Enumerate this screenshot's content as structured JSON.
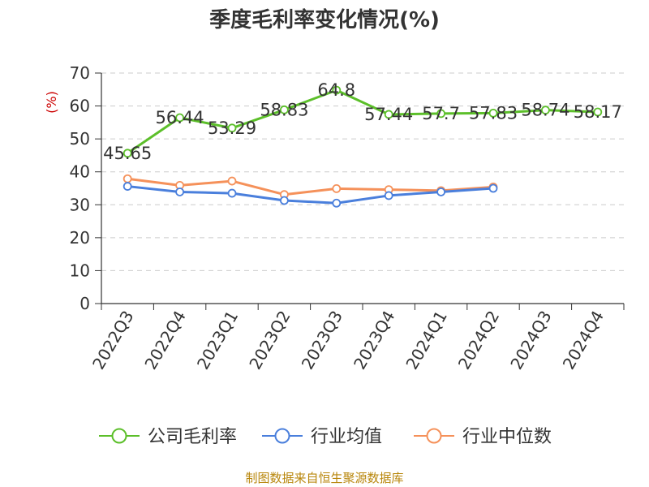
{
  "chart_data": {
    "type": "line",
    "title": "季度毛利率变化情况(%)",
    "ylabel": "(%)",
    "categories": [
      "2022Q3",
      "2022Q4",
      "2023Q1",
      "2023Q2",
      "2023Q3",
      "2023Q4",
      "2024Q1",
      "2024Q2",
      "2024Q3",
      "2024Q4"
    ],
    "ylim": [
      0,
      70
    ],
    "yticks": [
      0,
      10,
      20,
      30,
      40,
      50,
      60,
      70
    ],
    "grid": true,
    "legend_position": "bottom",
    "series": [
      {
        "name": "公司毛利率",
        "color": "#5cbf2a",
        "values": [
          45.65,
          56.44,
          53.29,
          58.83,
          64.8,
          57.44,
          57.7,
          57.83,
          58.74,
          58.17
        ],
        "labels": [
          "45.65",
          "56.44",
          "53.29",
          "58.83",
          "64.8",
          "57.44",
          "57.7",
          "57.83",
          "58.74",
          "58.17"
        ],
        "show_labels": true
      },
      {
        "name": "行业均值",
        "color": "#4a7fdc",
        "values": [
          35.6,
          33.9,
          33.5,
          31.3,
          30.5,
          32.8,
          33.9,
          35.0,
          null,
          null
        ],
        "show_labels": false
      },
      {
        "name": "行业中位数",
        "color": "#f5915a",
        "values": [
          37.9,
          35.9,
          37.2,
          33.1,
          34.9,
          34.6,
          34.3,
          35.4,
          null,
          null
        ],
        "show_labels": false
      }
    ]
  },
  "footer": {
    "source": "制图数据来自恒生聚源数据库"
  }
}
